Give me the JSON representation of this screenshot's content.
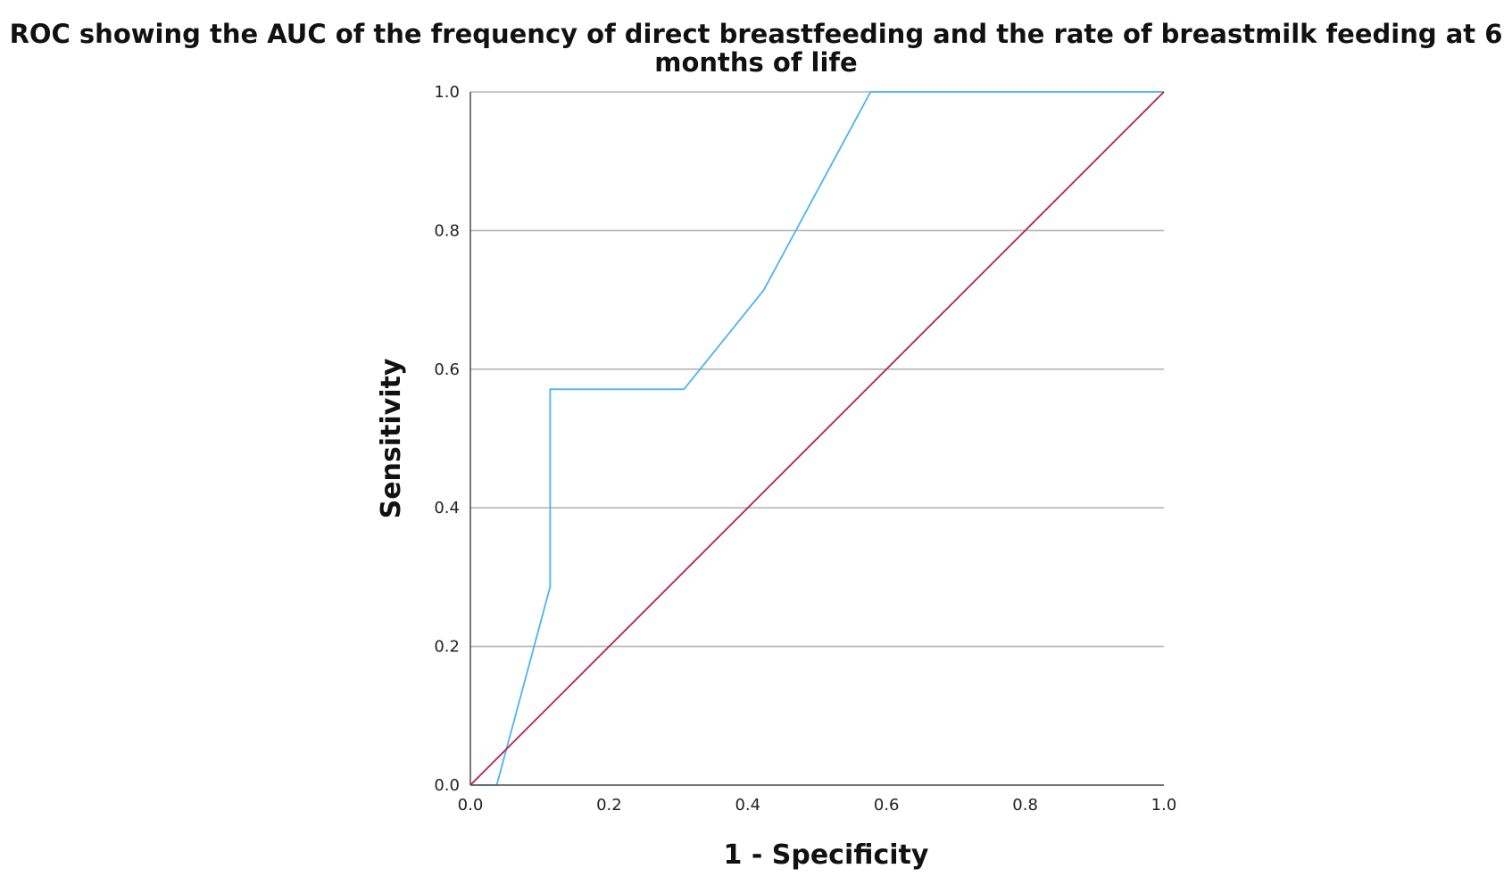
{
  "chart_data": {
    "type": "line",
    "title_lines": [
      "ROC showing the AUC of the frequency of direct breastfeeding and the rate of breastmilk feeding at 6",
      "months of life"
    ],
    "xlabel": "1 - Specificity",
    "ylabel": "Sensitivity",
    "xlim": [
      0,
      1
    ],
    "ylim": [
      0,
      1
    ],
    "x_ticks": [
      "0.0",
      "0.2",
      "0.4",
      "0.6",
      "0.8",
      "1.0"
    ],
    "y_ticks": [
      "0.0",
      "0.2",
      "0.4",
      "0.6",
      "0.8",
      "1.0"
    ],
    "grid": "horizontal",
    "legend": "none",
    "series": [
      {
        "color": "#4db3f0",
        "points": [
          [
            0.0,
            0.0
          ],
          [
            0.038,
            0.0
          ],
          [
            0.115,
            0.286
          ],
          [
            0.115,
            0.571
          ],
          [
            0.308,
            0.571
          ],
          [
            0.423,
            0.714
          ],
          [
            0.577,
            1.0
          ],
          [
            1.0,
            1.0
          ]
        ]
      },
      {
        "color": "#b0204e",
        "points": [
          [
            0.0,
            0.0
          ],
          [
            1.0,
            1.0
          ]
        ]
      }
    ]
  }
}
